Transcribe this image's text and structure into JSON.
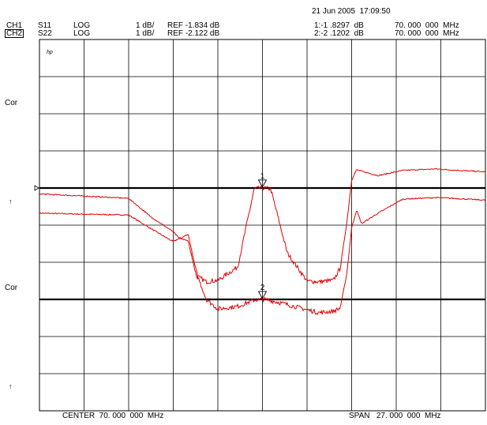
{
  "header": {
    "timestamp": "21 Jun 2005  17:09:50",
    "ch1": {
      "label": "CH1",
      "param": "S11",
      "format": "LOG",
      "scale": "1 dB/",
      "ref": "REF -1.834 dB",
      "marker_value": "1:-1 .8297  dB",
      "marker_freq": "70. 000  000  MHz"
    },
    "ch2": {
      "label": "CH2",
      "param": "S22",
      "format": "LOG",
      "scale": "1 dB/",
      "ref": "REF -2.122 dB",
      "marker_value": "2:-2 .1202  dB",
      "marker_freq": "70. 000  000  MHz"
    }
  },
  "side_labels": {
    "hp": "hp",
    "cor1": "Cor",
    "cor2": "Cor",
    "arrow1": "↑",
    "arrow2": "↑"
  },
  "footer": {
    "center": "CENTER  70. 000  000  MHz",
    "span": "SPAN   27. 000  000  MHz"
  },
  "colors": {
    "trace": "#e00000",
    "grid": "#000000",
    "background": "#ffffff"
  },
  "chart_data": {
    "type": "line",
    "title": "",
    "x_unit": "MHz",
    "center_mhz": 70.0,
    "span_mhz": 27.0,
    "xlim": [
      56.5,
      83.5
    ],
    "grid": true,
    "divisions": {
      "x": 10,
      "y": 10
    },
    "x": [
      56.5,
      59.2,
      61.9,
      63.25,
      64.6,
      65.0,
      65.5,
      66.0,
      66.6,
      67.3,
      68.5,
      69.5,
      70.0,
      70.5,
      71.5,
      72.7,
      73.4,
      74.3,
      74.7,
      75.1,
      75.4,
      75.7,
      76.0,
      77.0,
      78.5,
      80.5,
      81.5,
      83.5
    ],
    "series": [
      {
        "name": "CH1 S11",
        "scale_db_per_div": 1,
        "ref_db": -1.834,
        "marker": {
          "id": "1",
          "x": 70.0,
          "value_db": -1.8297
        },
        "values": [
          -2.51,
          -2.54,
          -2.56,
          -2.93,
          -3.28,
          -3.18,
          -3.26,
          -4.2,
          -4.36,
          -4.32,
          -3.96,
          -1.86,
          -1.83,
          -1.86,
          -3.58,
          -4.34,
          -4.36,
          -4.32,
          -4.0,
          -2.8,
          -1.62,
          -1.34,
          -1.38,
          -1.5,
          -1.36,
          -1.32,
          -1.35,
          -1.4
        ]
      },
      {
        "name": "CH2 S22",
        "scale_db_per_div": 1,
        "ref_db": -2.122,
        "marker": {
          "id": "2",
          "x": 70.0,
          "value_db": -2.1202
        },
        "values": [
          0.72,
          0.66,
          0.6,
          0.1,
          -0.3,
          -0.5,
          -0.36,
          -1.4,
          -2.12,
          -2.38,
          -2.31,
          -2.14,
          -2.12,
          -2.15,
          -2.26,
          -2.4,
          -2.48,
          -2.44,
          -2.36,
          -1.46,
          -0.2,
          0.28,
          -0.08,
          0.2,
          0.58,
          0.62,
          0.6,
          0.55
        ]
      }
    ]
  }
}
